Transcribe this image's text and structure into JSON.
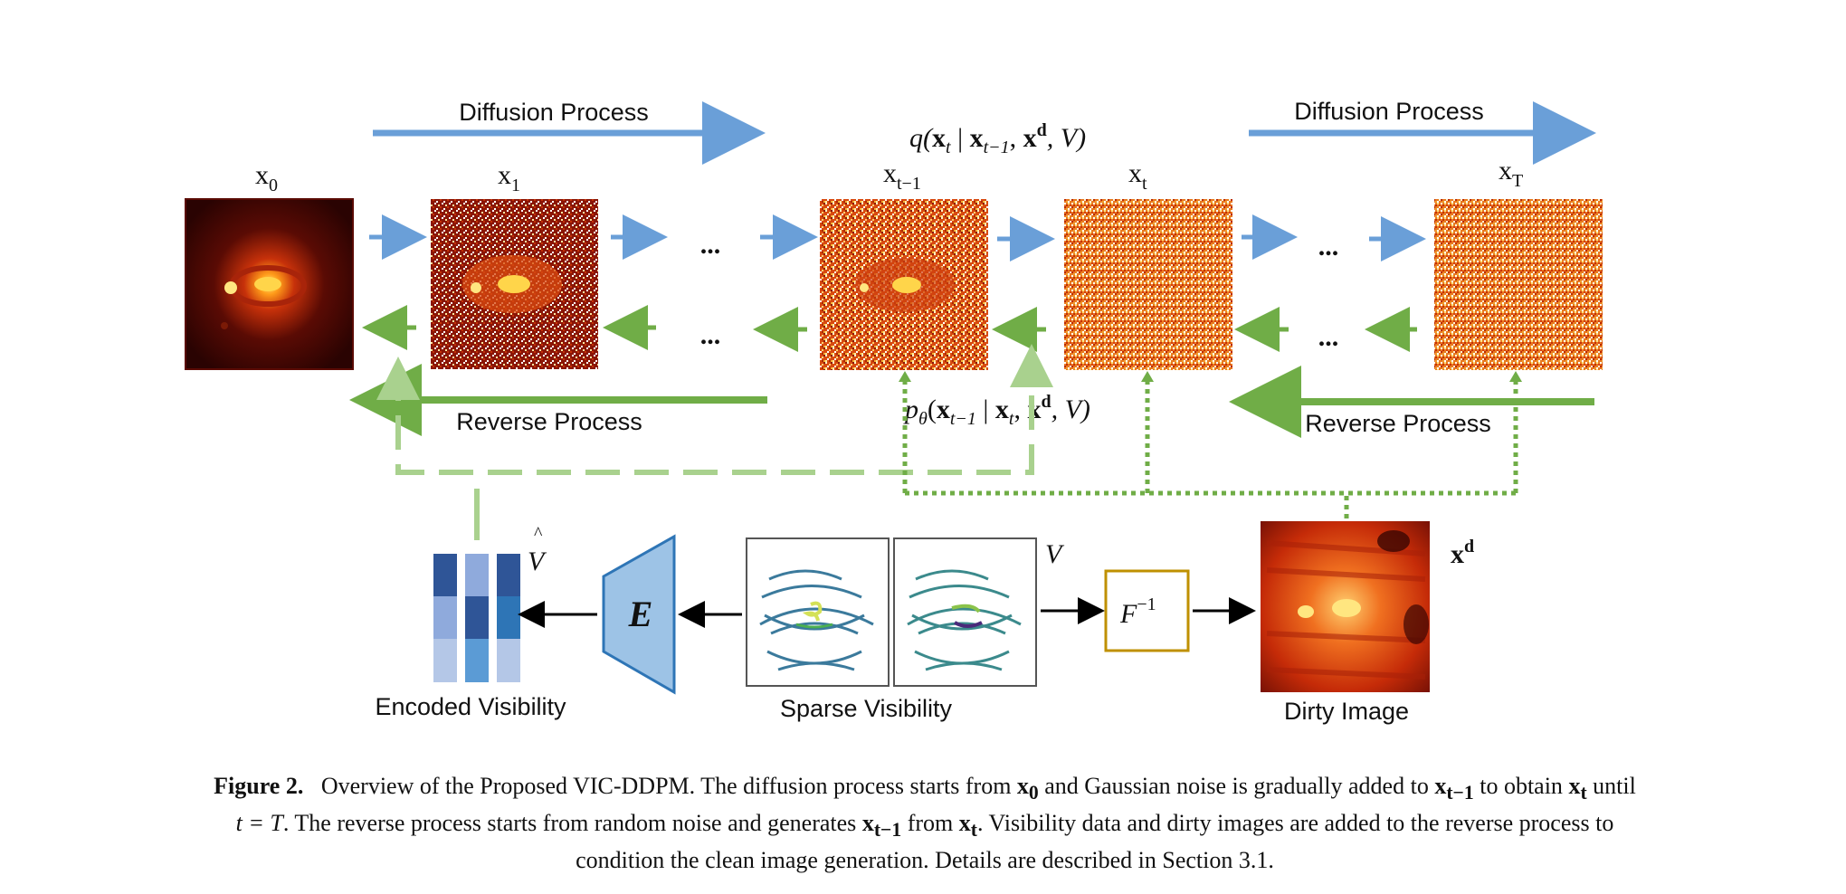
{
  "figure": {
    "labels": {
      "diffusion_left": "Diffusion Process",
      "diffusion_right": "Diffusion Process",
      "reverse_left": "Reverse Process",
      "reverse_right": "Reverse Process",
      "encoded_visibility": "Encoded Visibility",
      "sparse_visibility": "Sparse Visibility",
      "dirty_image": "Dirty Image",
      "encoder": "E",
      "inverse_fourier": "F",
      "inverse_fourier_sup": "−1",
      "v_label": "V",
      "v_hat_label": "V",
      "v_hat_mark": "^",
      "ellipsis": "..."
    },
    "states": {
      "x0": {
        "main": "x",
        "sub": "0"
      },
      "x1": {
        "main": "x",
        "sub": "1"
      },
      "xt_1": {
        "main": "x",
        "sub": "t−1"
      },
      "xt": {
        "main": "x",
        "sub": "t"
      },
      "xT": {
        "main": "x",
        "sub": "T"
      }
    },
    "formulas": {
      "forward": {
        "q": "q(",
        "x": "x",
        "t": "t",
        "bar": " | ",
        "x2": "x",
        "t1": "t−1",
        "comma": ", ",
        "xd": "x",
        "d": "d",
        "rest": ", V)"
      },
      "reverse": {
        "p": "p",
        "theta": "θ",
        "open": "(",
        "x": "x",
        "t1": "t−1",
        "bar": " | ",
        "x2": "x",
        "t": "t",
        "comma": ", ",
        "xd": "x",
        "d": "d",
        "rest": ", V)"
      },
      "xd_label": {
        "x": "x",
        "d": "d"
      }
    },
    "colors": {
      "forward_arrow": "#6a9fd8",
      "reverse_arrow": "#70ad47",
      "dashed_light": "#a9d18e",
      "encoder_fill": "#9dc3e6",
      "encoder_stroke": "#2e75b6",
      "f_inv_box": "#bf9000"
    }
  },
  "caption": {
    "prefix": "Figure 2.",
    "seg1": "Overview of the Proposed VIC-DDPM. The diffusion process starts from ",
    "x0": "x",
    "x0_sub": "0",
    "seg2": " and Gaussian noise is gradually added to ",
    "xt1": "x",
    "xt1_sub": "t−1",
    "seg3": " to obtain ",
    "xt": "x",
    "xt_sub": "t",
    "seg4": " until",
    "t_eq": "t = T",
    "seg5": ". The reverse process starts from random noise and generates ",
    "xt1b": "x",
    "xt1b_sub": "t−1",
    "seg6": " from ",
    "xtb": "x",
    "xtb_sub": "t",
    "seg7": ". Visibility data and dirty images are added to the reverse process to",
    "line3": "condition the clean image generation. Details are described in Section 3.1."
  }
}
